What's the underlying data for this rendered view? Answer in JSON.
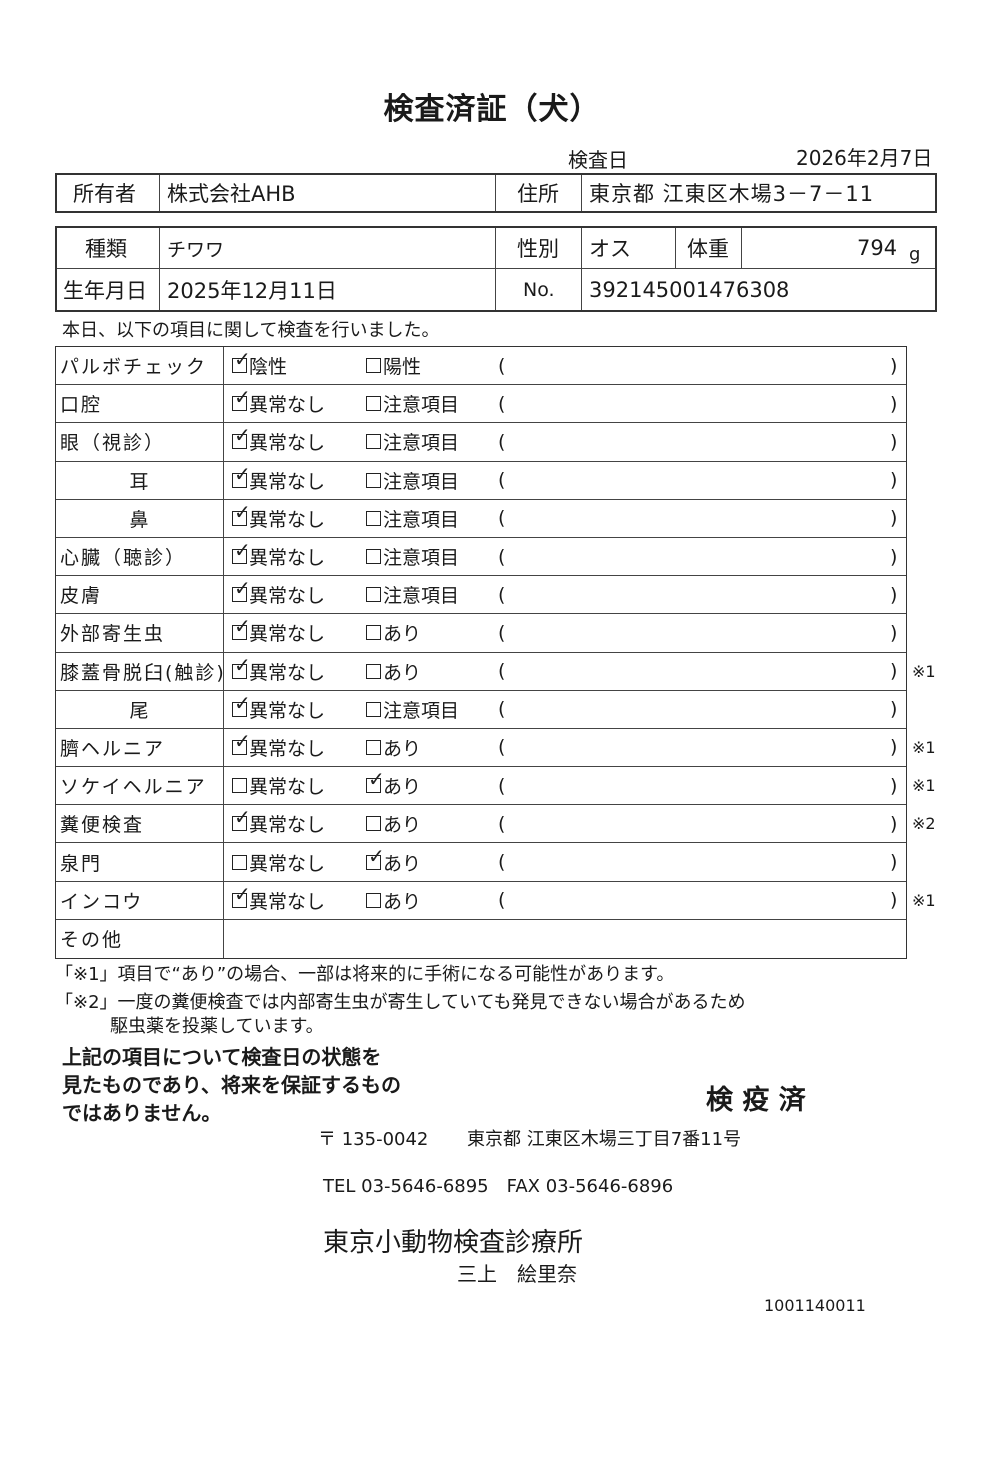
{
  "title": "検査済証（犬）",
  "exam_date_label": "検査日",
  "exam_date": "2026年2月7日",
  "owner": {
    "label": "所有者",
    "value": "株式会社AHB",
    "address_label": "住所",
    "address": "東京都 江東区木場3－7－11"
  },
  "animal": {
    "breed_label": "種類",
    "breed": "チワワ",
    "sex_label": "性別",
    "sex": "オス",
    "weight_label": "体重",
    "weight": "794",
    "weight_unit": "g",
    "birth_label": "生年月日",
    "birth": "2025年12月11日",
    "no_label": "No.",
    "no": "392145001476308"
  },
  "intro": "本日、以下の項目に関して検査を行いました。",
  "items": [
    {
      "label": "パルボチェック",
      "opt1": "陰性",
      "opt2": "陽性",
      "checked": 1,
      "note": ""
    },
    {
      "label": "口腔",
      "opt1": "異常なし",
      "opt2": "注意項目",
      "checked": 1,
      "note": ""
    },
    {
      "label": "眼（視診）",
      "opt1": "異常なし",
      "opt2": "注意項目",
      "checked": 1,
      "note": ""
    },
    {
      "label": "耳",
      "opt1": "異常なし",
      "opt2": "注意項目",
      "checked": 1,
      "note": ""
    },
    {
      "label": "鼻",
      "opt1": "異常なし",
      "opt2": "注意項目",
      "checked": 1,
      "note": ""
    },
    {
      "label": "心臓（聴診）",
      "opt1": "異常なし",
      "opt2": "注意項目",
      "checked": 1,
      "note": ""
    },
    {
      "label": "皮膚",
      "opt1": "異常なし",
      "opt2": "注意項目",
      "checked": 1,
      "note": ""
    },
    {
      "label": "外部寄生虫",
      "opt1": "異常なし",
      "opt2": "あり",
      "checked": 1,
      "note": ""
    },
    {
      "label": "膝蓋骨脱臼(触診)",
      "opt1": "異常なし",
      "opt2": "あり",
      "checked": 1,
      "note": "※1"
    },
    {
      "label": "尾",
      "opt1": "異常なし",
      "opt2": "注意項目",
      "checked": 1,
      "note": ""
    },
    {
      "label": "臍ヘルニア",
      "opt1": "異常なし",
      "opt2": "あり",
      "checked": 1,
      "note": "※1"
    },
    {
      "label": "ソケイヘルニア",
      "opt1": "異常なし",
      "opt2": "あり",
      "checked": 2,
      "note": "※1"
    },
    {
      "label": "糞便検査",
      "opt1": "異常なし",
      "opt2": "あり",
      "checked": 1,
      "note": "※2"
    },
    {
      "label": "泉門",
      "opt1": "異常なし",
      "opt2": "あり",
      "checked": 2,
      "note": ""
    },
    {
      "label": "インコウ",
      "opt1": "異常なし",
      "opt2": "あり",
      "checked": 1,
      "note": "※1"
    }
  ],
  "other_label": "その他",
  "paren_open": "(",
  "paren_close": ")",
  "footnote1": "「※1」項目で“あり”の場合、一部は将来的に手術になる可能性があります。",
  "footnote2a": "「※2」一度の糞便検査では内部寄生虫が寄生していても発見できない場合があるため",
  "footnote2b": "駆虫薬を投薬しています。",
  "disclaimer": [
    "上記の項目について検査日の状態を",
    "見たものであり、将来を保証するもの",
    "ではありません。"
  ],
  "stamp": "検 疫 済",
  "postal": "〒 135-0042",
  "clinic_address": "東京都 江東区木場三丁目7番11号",
  "phone": "TEL 03-5646-6895　FAX 03-5646-6896",
  "clinic_name": "東京小動物検査診療所",
  "vet_name": "三上　絵里奈",
  "serial": "1001140011"
}
